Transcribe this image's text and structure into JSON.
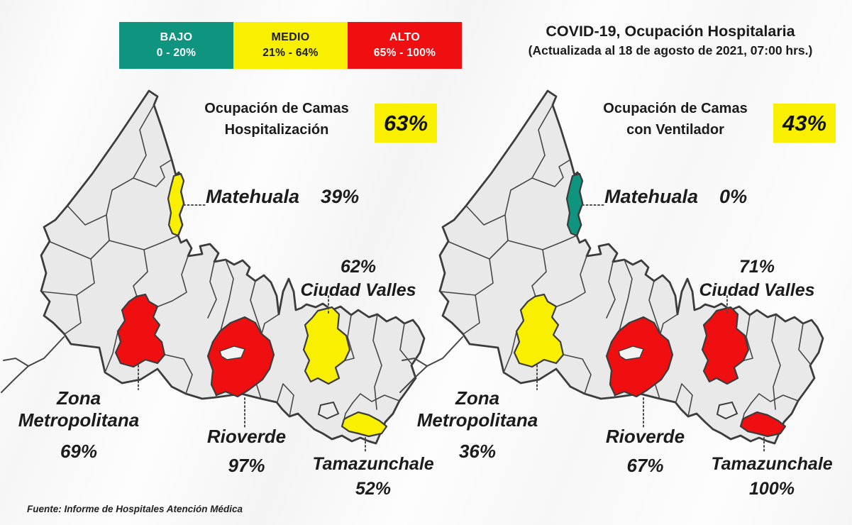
{
  "legend": {
    "items": [
      {
        "label": "BAJO",
        "range": "0 - 20%",
        "color": "#0F9480",
        "text_color": "#FFFFFF"
      },
      {
        "label": "MEDIO",
        "range": "21% - 64%",
        "color": "#F8F000",
        "text_color": "#1B1B1B"
      },
      {
        "label": "ALTO",
        "range": "65% - 100%",
        "color": "#EF0E10",
        "text_color": "#FFFFFF"
      }
    ]
  },
  "header": {
    "title": "COVID-19, Ocupación Hospitalaria",
    "subtitle": "(Actualizada al 18 de agosto de 2021, 07:00 hrs.)"
  },
  "maps": [
    {
      "title_line1": "Ocupación de Camas",
      "title_line2": "Hospitalización",
      "total": "63%",
      "regions": [
        {
          "key": "matehuala",
          "name": "Matehuala",
          "value": "39%",
          "level": "medio"
        },
        {
          "key": "ciudad_valles",
          "name": "Ciudad Valles",
          "value": "62%",
          "level": "medio"
        },
        {
          "key": "zona_metropolitana",
          "name": "Zona Metropolitana",
          "value": "69%",
          "level": "alto"
        },
        {
          "key": "rioverde",
          "name": "Rioverde",
          "value": "97%",
          "level": "alto"
        },
        {
          "key": "tamazunchale",
          "name": "Tamazunchale",
          "value": "52%",
          "level": "medio"
        }
      ]
    },
    {
      "title_line1": "Ocupación de Camas",
      "title_line2": "con Ventilador",
      "total": "43%",
      "regions": [
        {
          "key": "matehuala",
          "name": "Matehuala",
          "value": "0%",
          "level": "bajo"
        },
        {
          "key": "ciudad_valles",
          "name": "Ciudad Valles",
          "value": "71%",
          "level": "alto"
        },
        {
          "key": "zona_metropolitana",
          "name": "Zona Metropolitana",
          "value": "36%",
          "level": "medio"
        },
        {
          "key": "rioverde",
          "name": "Rioverde",
          "value": "67%",
          "level": "alto"
        },
        {
          "key": "tamazunchale",
          "name": "Tamazunchale",
          "value": "100%",
          "level": "alto"
        }
      ]
    }
  ],
  "footer": {
    "source": "Fuente: Informe de Hospitales Atención Médica"
  },
  "colors": {
    "bajo": "#0F9480",
    "medio": "#F8F000",
    "alto": "#EF0E10",
    "map_fill": "#E9E9E9",
    "map_border": "#3C3C3C"
  }
}
